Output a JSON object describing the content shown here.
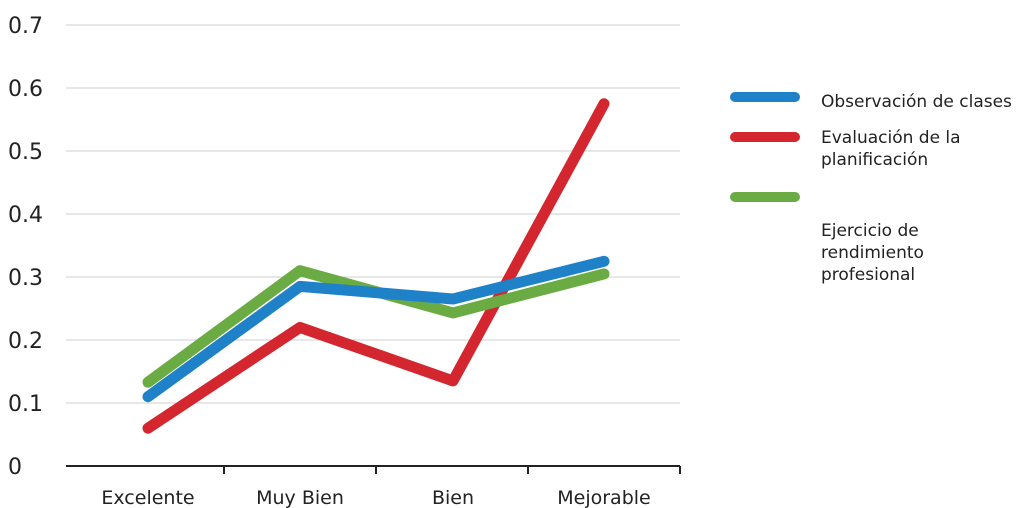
{
  "chart_data": {
    "type": "line",
    "categories": [
      "Excelente",
      "Muy Bien",
      "Bien",
      "Mejorable"
    ],
    "ylim": [
      0,
      0.7
    ],
    "yticks": [
      "0",
      "0.1",
      "0.2",
      "0.3",
      "0.4",
      "0.5",
      "0.6",
      "0.7"
    ],
    "grid": true,
    "legend_position": "right",
    "series": [
      {
        "name": "Observación de clases",
        "color": "#1f82c8",
        "values": [
          0.11,
          0.285,
          0.265,
          0.325
        ]
      },
      {
        "name": "Evaluación de la planificación",
        "color": "#d3262f",
        "values": [
          0.06,
          0.22,
          0.135,
          0.575
        ]
      },
      {
        "name": "Ejercicio de rendimiento profesional",
        "color": "#6aab44",
        "values": [
          0.133,
          0.31,
          0.243,
          0.305
        ]
      }
    ]
  },
  "legend": {
    "items": [
      {
        "label": "Observación de clases",
        "color": "#1f82c8"
      },
      {
        "label": "Evaluación de la planificación",
        "color": "#d3262f"
      },
      {
        "label": "Ejercicio de rendimiento profesional",
        "color": "#6aab44"
      }
    ]
  }
}
